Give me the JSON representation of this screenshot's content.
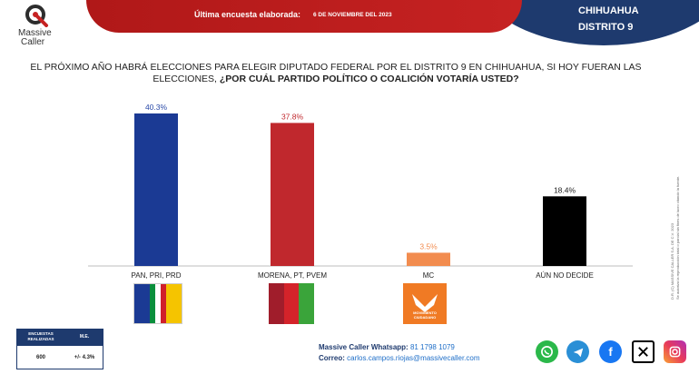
{
  "header": {
    "survey_label": "Última encuesta elaborada:",
    "survey_date": "6 DE NOVIEMBRE DEL 2023",
    "state": "CHIHUAHUA",
    "district": "DISTRITO 9"
  },
  "logo": {
    "line1": "Massive",
    "line2": "Caller"
  },
  "question": {
    "part1": "EL PRÓXIMO AÑO HABRÁ ELECCIONES PARA ELEGIR DIPUTADO FEDERAL POR EL DISTRITO 9 EN CHIHUAHUA, SI HOY FUERAN LAS ELECCIONES,",
    "part2": "¿POR CUÁL PARTIDO POLÍTICO O COALICIÓN  VOTARÍA USTED?"
  },
  "chart_data": {
    "type": "bar",
    "categories": [
      "PAN, PRI, PRD",
      "MORENA, PT, PVEM",
      "MC",
      "AÚN NO DECIDE"
    ],
    "values": [
      40.3,
      37.8,
      3.5,
      18.4
    ],
    "value_labels": [
      "40.3%",
      "37.8%",
      "3.5%",
      "18.4%"
    ],
    "colors": [
      "#1b3a94",
      "#c0282d",
      "#f28c4f",
      "#000000"
    ],
    "label_colors": [
      "#2a4aa8",
      "#c0282d",
      "#f28c4f",
      "#222222"
    ],
    "title": "",
    "xlabel": "",
    "ylabel": "",
    "ylim": [
      0,
      40.3
    ],
    "grid": false,
    "legend": "none"
  },
  "mc_logo_text": "MOVIMIENTO CIUDADANO",
  "sample_table": {
    "col1_header_line1": "ENCUESTAS",
    "col1_header_line2": "REALIZADAS",
    "col2_header": "M.E.",
    "col1_value": "600",
    "col2_value": "+/- 4.3%"
  },
  "contact": {
    "whatsapp_label": "Massive Caller Whatsapp:",
    "whatsapp_value": "81 1798 1079",
    "email_label": "Correo:",
    "email_value": "carlos.campos.riojas@massivecaller.com"
  },
  "social_icons": [
    "whatsapp-icon",
    "telegram-icon",
    "facebook-icon",
    "x-icon",
    "instagram-icon"
  ],
  "copyright": {
    "line1": "D.R. (C) MASSIVE CALLER S.A. DE C.V. 2023",
    "line2": "Se autoriza la reproducción total o parcial sin fines de lucro citando la fuente."
  }
}
